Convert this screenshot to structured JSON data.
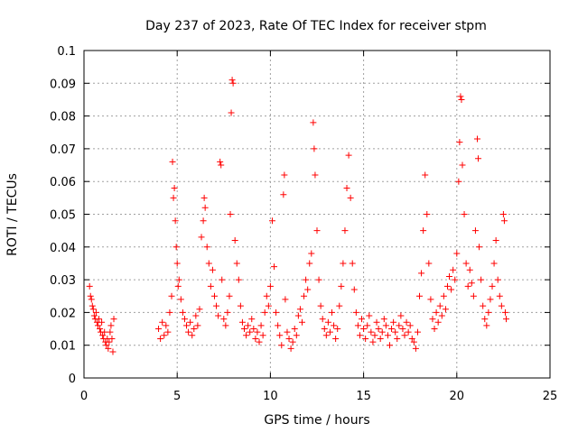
{
  "chart_data": {
    "type": "scatter",
    "title": "Day 237 of 2023, Rate Of TEC Index for receiver stpm",
    "xlabel": "GPS time / hours",
    "ylabel": "ROTI / TECUs",
    "xlim": [
      0,
      25
    ],
    "ylim": [
      0,
      0.1
    ],
    "x_ticks": [
      0,
      5,
      10,
      15,
      20,
      25
    ],
    "x_tick_labels": [
      "0",
      "5",
      "10",
      "15",
      "20",
      "25"
    ],
    "y_ticks": [
      0,
      0.01,
      0.02,
      0.03,
      0.04,
      0.05,
      0.06,
      0.07,
      0.08,
      0.09,
      0.1
    ],
    "y_tick_labels": [
      "0",
      "0.01",
      "0.02",
      "0.03",
      "0.04",
      "0.05",
      "0.06",
      "0.07",
      "0.08",
      "0.09",
      "0.1"
    ],
    "grid": true,
    "marker": "+",
    "marker_color": "#ff0000",
    "series": [
      {
        "points": [
          [
            0.3,
            0.028
          ],
          [
            0.35,
            0.025
          ],
          [
            0.4,
            0.024
          ],
          [
            0.45,
            0.022
          ],
          [
            0.5,
            0.021
          ],
          [
            0.55,
            0.019
          ],
          [
            0.6,
            0.018
          ],
          [
            0.65,
            0.02
          ],
          [
            0.7,
            0.017
          ],
          [
            0.75,
            0.016
          ],
          [
            0.8,
            0.018
          ],
          [
            0.85,
            0.015
          ],
          [
            0.9,
            0.014
          ],
          [
            0.95,
            0.017
          ],
          [
            1.0,
            0.013
          ],
          [
            1.05,
            0.012
          ],
          [
            1.1,
            0.014
          ],
          [
            1.15,
            0.011
          ],
          [
            1.2,
            0.01
          ],
          [
            1.25,
            0.012
          ],
          [
            1.3,
            0.009
          ],
          [
            1.35,
            0.011
          ],
          [
            1.4,
            0.014
          ],
          [
            1.45,
            0.016
          ],
          [
            1.5,
            0.012
          ],
          [
            1.55,
            0.008
          ],
          [
            1.6,
            0.018
          ],
          [
            4.0,
            0.015
          ],
          [
            4.1,
            0.012
          ],
          [
            4.2,
            0.017
          ],
          [
            4.3,
            0.013
          ],
          [
            4.4,
            0.016
          ],
          [
            4.5,
            0.014
          ],
          [
            4.6,
            0.02
          ],
          [
            4.7,
            0.025
          ],
          [
            4.75,
            0.066
          ],
          [
            4.8,
            0.055
          ],
          [
            4.85,
            0.058
          ],
          [
            4.9,
            0.048
          ],
          [
            4.95,
            0.04
          ],
          [
            5.0,
            0.035
          ],
          [
            5.05,
            0.028
          ],
          [
            5.1,
            0.03
          ],
          [
            5.2,
            0.024
          ],
          [
            5.3,
            0.02
          ],
          [
            5.4,
            0.018
          ],
          [
            5.5,
            0.016
          ],
          [
            5.6,
            0.014
          ],
          [
            5.7,
            0.017
          ],
          [
            5.8,
            0.013
          ],
          [
            5.9,
            0.015
          ],
          [
            6.0,
            0.019
          ],
          [
            6.1,
            0.016
          ],
          [
            6.2,
            0.021
          ],
          [
            6.3,
            0.043
          ],
          [
            6.4,
            0.048
          ],
          [
            6.45,
            0.055
          ],
          [
            6.5,
            0.052
          ],
          [
            6.6,
            0.04
          ],
          [
            6.7,
            0.035
          ],
          [
            6.8,
            0.028
          ],
          [
            6.9,
            0.033
          ],
          [
            7.0,
            0.025
          ],
          [
            7.1,
            0.022
          ],
          [
            7.2,
            0.019
          ],
          [
            7.3,
            0.066
          ],
          [
            7.35,
            0.065
          ],
          [
            7.4,
            0.03
          ],
          [
            7.5,
            0.018
          ],
          [
            7.6,
            0.016
          ],
          [
            7.7,
            0.02
          ],
          [
            7.8,
            0.025
          ],
          [
            7.85,
            0.05
          ],
          [
            7.9,
            0.081
          ],
          [
            7.95,
            0.091
          ],
          [
            8.0,
            0.09
          ],
          [
            8.1,
            0.042
          ],
          [
            8.2,
            0.035
          ],
          [
            8.3,
            0.03
          ],
          [
            8.4,
            0.022
          ],
          [
            8.5,
            0.017
          ],
          [
            8.6,
            0.015
          ],
          [
            8.7,
            0.013
          ],
          [
            8.8,
            0.016
          ],
          [
            8.9,
            0.014
          ],
          [
            9.0,
            0.018
          ],
          [
            9.1,
            0.015
          ],
          [
            9.2,
            0.012
          ],
          [
            9.3,
            0.014
          ],
          [
            9.4,
            0.011
          ],
          [
            9.5,
            0.016
          ],
          [
            9.6,
            0.013
          ],
          [
            9.7,
            0.02
          ],
          [
            9.8,
            0.025
          ],
          [
            9.9,
            0.022
          ],
          [
            10.0,
            0.028
          ],
          [
            10.1,
            0.048
          ],
          [
            10.2,
            0.034
          ],
          [
            10.3,
            0.02
          ],
          [
            10.4,
            0.016
          ],
          [
            10.5,
            0.013
          ],
          [
            10.6,
            0.01
          ],
          [
            10.7,
            0.056
          ],
          [
            10.75,
            0.062
          ],
          [
            10.8,
            0.024
          ],
          [
            10.9,
            0.014
          ],
          [
            11.0,
            0.012
          ],
          [
            11.1,
            0.009
          ],
          [
            11.2,
            0.011
          ],
          [
            11.3,
            0.015
          ],
          [
            11.4,
            0.013
          ],
          [
            11.5,
            0.019
          ],
          [
            11.6,
            0.021
          ],
          [
            11.7,
            0.017
          ],
          [
            11.8,
            0.025
          ],
          [
            11.9,
            0.03
          ],
          [
            12.0,
            0.027
          ],
          [
            12.1,
            0.035
          ],
          [
            12.2,
            0.038
          ],
          [
            12.3,
            0.078
          ],
          [
            12.35,
            0.07
          ],
          [
            12.4,
            0.062
          ],
          [
            12.5,
            0.045
          ],
          [
            12.6,
            0.03
          ],
          [
            12.7,
            0.022
          ],
          [
            12.8,
            0.018
          ],
          [
            12.9,
            0.015
          ],
          [
            13.0,
            0.013
          ],
          [
            13.1,
            0.017
          ],
          [
            13.2,
            0.014
          ],
          [
            13.3,
            0.02
          ],
          [
            13.4,
            0.016
          ],
          [
            13.5,
            0.012
          ],
          [
            13.6,
            0.015
          ],
          [
            13.7,
            0.022
          ],
          [
            13.8,
            0.028
          ],
          [
            13.9,
            0.035
          ],
          [
            14.0,
            0.045
          ],
          [
            14.1,
            0.058
          ],
          [
            14.2,
            0.068
          ],
          [
            14.3,
            0.055
          ],
          [
            14.4,
            0.035
          ],
          [
            14.5,
            0.027
          ],
          [
            14.6,
            0.02
          ],
          [
            14.7,
            0.016
          ],
          [
            14.8,
            0.013
          ],
          [
            14.9,
            0.018
          ],
          [
            15.0,
            0.015
          ],
          [
            15.1,
            0.012
          ],
          [
            15.2,
            0.016
          ],
          [
            15.3,
            0.019
          ],
          [
            15.4,
            0.014
          ],
          [
            15.5,
            0.011
          ],
          [
            15.6,
            0.013
          ],
          [
            15.7,
            0.017
          ],
          [
            15.8,
            0.015
          ],
          [
            15.9,
            0.012
          ],
          [
            16.0,
            0.014
          ],
          [
            16.1,
            0.018
          ],
          [
            16.2,
            0.016
          ],
          [
            16.3,
            0.013
          ],
          [
            16.4,
            0.01
          ],
          [
            16.5,
            0.015
          ],
          [
            16.6,
            0.017
          ],
          [
            16.7,
            0.014
          ],
          [
            16.8,
            0.012
          ],
          [
            16.9,
            0.016
          ],
          [
            17.0,
            0.019
          ],
          [
            17.1,
            0.015
          ],
          [
            17.2,
            0.013
          ],
          [
            17.3,
            0.017
          ],
          [
            17.4,
            0.014
          ],
          [
            17.5,
            0.016
          ],
          [
            17.6,
            0.012
          ],
          [
            17.7,
            0.011
          ],
          [
            17.8,
            0.009
          ],
          [
            17.9,
            0.014
          ],
          [
            18.0,
            0.025
          ],
          [
            18.1,
            0.032
          ],
          [
            18.2,
            0.045
          ],
          [
            18.3,
            0.062
          ],
          [
            18.4,
            0.05
          ],
          [
            18.5,
            0.035
          ],
          [
            18.6,
            0.024
          ],
          [
            18.7,
            0.018
          ],
          [
            18.8,
            0.015
          ],
          [
            18.9,
            0.02
          ],
          [
            19.0,
            0.017
          ],
          [
            19.1,
            0.022
          ],
          [
            19.2,
            0.019
          ],
          [
            19.3,
            0.025
          ],
          [
            19.4,
            0.021
          ],
          [
            19.5,
            0.028
          ],
          [
            19.6,
            0.031
          ],
          [
            19.7,
            0.027
          ],
          [
            19.8,
            0.033
          ],
          [
            19.9,
            0.03
          ],
          [
            20.0,
            0.038
          ],
          [
            20.1,
            0.06
          ],
          [
            20.15,
            0.072
          ],
          [
            20.2,
            0.086
          ],
          [
            20.25,
            0.085
          ],
          [
            20.3,
            0.065
          ],
          [
            20.4,
            0.05
          ],
          [
            20.5,
            0.035
          ],
          [
            20.6,
            0.028
          ],
          [
            20.7,
            0.033
          ],
          [
            20.8,
            0.029
          ],
          [
            20.9,
            0.025
          ],
          [
            21.0,
            0.045
          ],
          [
            21.1,
            0.073
          ],
          [
            21.15,
            0.067
          ],
          [
            21.2,
            0.04
          ],
          [
            21.3,
            0.03
          ],
          [
            21.4,
            0.022
          ],
          [
            21.5,
            0.018
          ],
          [
            21.6,
            0.016
          ],
          [
            21.7,
            0.02
          ],
          [
            21.8,
            0.024
          ],
          [
            21.9,
            0.028
          ],
          [
            22.0,
            0.035
          ],
          [
            22.1,
            0.042
          ],
          [
            22.2,
            0.03
          ],
          [
            22.3,
            0.025
          ],
          [
            22.4,
            0.022
          ],
          [
            22.5,
            0.05
          ],
          [
            22.55,
            0.048
          ],
          [
            22.6,
            0.02
          ],
          [
            22.65,
            0.018
          ]
        ]
      }
    ]
  }
}
